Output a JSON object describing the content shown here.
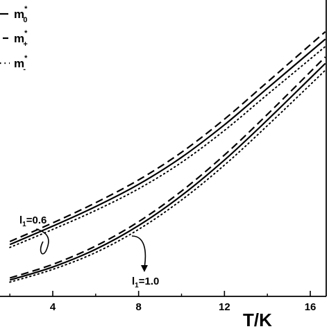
{
  "chart_data": {
    "type": "line",
    "xlabel": "T/K",
    "ylabel": "",
    "xlim": [
      2.0,
      16.7
    ],
    "ylim": [
      0.0,
      1.0
    ],
    "x_ticks": [
      4,
      8,
      12,
      16
    ],
    "grid": false,
    "legend_position": "top-left",
    "legend": [
      {
        "base": "m",
        "sup": "*",
        "sub": "0",
        "style": "solid"
      },
      {
        "base": "m",
        "sup": "*",
        "sub": "+",
        "style": "dashed"
      },
      {
        "base": "m",
        "sup": "*",
        "sub": "-",
        "style": "dotted"
      }
    ],
    "series": [
      {
        "group": "l1=0.6",
        "style": "solid",
        "x": [
          2,
          4,
          6,
          8,
          10,
          12,
          14,
          16.7
        ],
        "values": [
          0.175,
          0.237,
          0.303,
          0.378,
          0.469,
          0.579,
          0.702,
          0.868
        ]
      },
      {
        "group": "l1=0.6",
        "style": "dashed",
        "x": [
          2,
          4,
          6,
          8,
          10,
          12,
          14,
          16.7
        ],
        "values": [
          0.185,
          0.248,
          0.316,
          0.393,
          0.486,
          0.598,
          0.723,
          0.893
        ]
      },
      {
        "group": "l1=0.6",
        "style": "dotted",
        "x": [
          2,
          4,
          6,
          8,
          10,
          12,
          14,
          16.7
        ],
        "values": [
          0.165,
          0.226,
          0.29,
          0.363,
          0.452,
          0.56,
          0.681,
          0.843
        ]
      },
      {
        "group": "l1=1.0",
        "style": "solid",
        "x": [
          2,
          4,
          6,
          8,
          10,
          12,
          14,
          16.7
        ],
        "values": [
          0.055,
          0.099,
          0.159,
          0.239,
          0.34,
          0.46,
          0.595,
          0.786
        ]
      },
      {
        "group": "l1=1.0",
        "style": "dashed",
        "x": [
          2,
          4,
          6,
          8,
          10,
          12,
          14,
          16.7
        ],
        "values": [
          0.062,
          0.108,
          0.17,
          0.252,
          0.355,
          0.477,
          0.614,
          0.808
        ]
      },
      {
        "group": "l1=1.0",
        "style": "dotted",
        "x": [
          2,
          4,
          6,
          8,
          10,
          12,
          14,
          16.7
        ],
        "values": [
          0.048,
          0.091,
          0.148,
          0.226,
          0.325,
          0.443,
          0.576,
          0.763
        ]
      }
    ],
    "annotations": [
      {
        "base": "l",
        "sub": "1",
        "rest": "=0.6"
      },
      {
        "base": "l",
        "sub": "1",
        "rest": "=1.0"
      }
    ]
  }
}
